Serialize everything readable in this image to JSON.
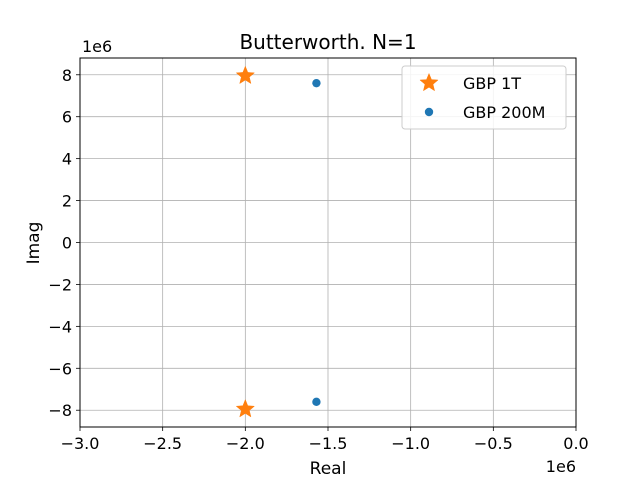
{
  "chart_data": {
    "type": "scatter",
    "title": "Butterworth. N=1",
    "xlabel": "Real",
    "ylabel": "Imag",
    "x_offset_text": "1e6",
    "y_offset_text": "1e6",
    "xlim": [
      -3.0,
      0.0
    ],
    "ylim": [
      -8.8,
      8.8
    ],
    "xticks": [
      -3.0,
      -2.5,
      -2.0,
      -1.5,
      -1.0,
      -0.5,
      0.0
    ],
    "xtick_labels": [
      "−3.0",
      "−2.5",
      "−2.0",
      "−1.5",
      "−1.0",
      "−0.5",
      "0.0"
    ],
    "yticks": [
      -8,
      -6,
      -4,
      -2,
      0,
      2,
      4,
      6,
      8
    ],
    "ytick_labels": [
      "−8",
      "−6",
      "−4",
      "−2",
      "0",
      "2",
      "4",
      "6",
      "8"
    ],
    "grid": true,
    "legend_position": "top-right",
    "series": [
      {
        "name": "GBP 1T",
        "marker": "star",
        "color": "#ff7f0e",
        "points": [
          {
            "x": -2.0,
            "y": 7.95
          },
          {
            "x": -2.0,
            "y": -7.95
          }
        ]
      },
      {
        "name": "GBP 200M",
        "marker": "circle",
        "color": "#1f77b4",
        "points": [
          {
            "x": -1.57,
            "y": 7.6
          },
          {
            "x": -1.57,
            "y": -7.6
          }
        ]
      }
    ]
  }
}
